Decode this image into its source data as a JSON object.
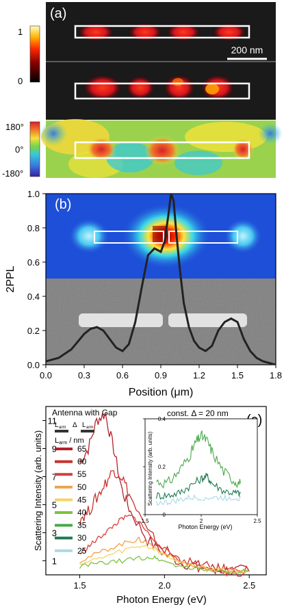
{
  "panel_a": {
    "label": "(a)",
    "scalebar": "200 nm",
    "amp_colorbar_ticks": [
      "1",
      "0"
    ],
    "phase_colorbar_ticks": [
      "180°",
      "0°",
      "-180°"
    ]
  },
  "panel_b": {
    "label": "(b)"
  },
  "panel_c": {
    "label": "(c)",
    "legend_title": "Antenna with Gap",
    "legend_schematic": [
      "L",
      "arm",
      "Δ",
      "L",
      "arm"
    ],
    "legend_header": [
      "L",
      "arm",
      " / nm"
    ]
  },
  "colors": {
    "trace": "#222222",
    "legend": {
      "65": "#b2212b",
      "60": "#c9302c",
      "55": "#d6403a",
      "50": "#f0a24b",
      "45": "#f4d36a",
      "40": "#7cc242",
      "35": "#4aa84a",
      "30": "#1f7a52",
      "25": "#a9d9e6"
    }
  },
  "chart_data": [
    {
      "type": "line",
      "panel": "b",
      "xlabel": "Position (μm)",
      "ylabel": "2PPL",
      "xlim": [
        0.0,
        1.8
      ],
      "ylim": [
        0.0,
        1.0
      ],
      "xticks": [
        "0.0",
        "0.3",
        "0.6",
        "0.9",
        "1.2",
        "1.5",
        "1.8"
      ],
      "yticks": [
        "0.0",
        "0.2",
        "0.4",
        "0.6",
        "0.8",
        "1.0"
      ],
      "series": [
        {
          "x": [
            0.0,
            0.1,
            0.2,
            0.3,
            0.35,
            0.4,
            0.45,
            0.5,
            0.55,
            0.6,
            0.65,
            0.7,
            0.75,
            0.8,
            0.85,
            0.9,
            0.93,
            0.96,
            0.98,
            1.0,
            1.02,
            1.05,
            1.08,
            1.12,
            1.16,
            1.2,
            1.25,
            1.3,
            1.35,
            1.4,
            1.45,
            1.5,
            1.55,
            1.6,
            1.65,
            1.7,
            1.75,
            1.8
          ],
          "y": [
            0.02,
            0.04,
            0.09,
            0.18,
            0.21,
            0.22,
            0.2,
            0.15,
            0.1,
            0.08,
            0.12,
            0.25,
            0.45,
            0.64,
            0.68,
            0.66,
            0.72,
            0.88,
            1.0,
            0.96,
            0.78,
            0.55,
            0.36,
            0.22,
            0.14,
            0.1,
            0.08,
            0.11,
            0.2,
            0.25,
            0.27,
            0.25,
            0.15,
            0.08,
            0.04,
            0.02,
            0.01,
            0.0
          ]
        }
      ]
    },
    {
      "type": "line",
      "panel": "c",
      "xlabel": "Photon Energy (eV)",
      "ylabel": "Scattering Intensity (arb. units)",
      "xlim": [
        1.3,
        2.6
      ],
      "ylim": [
        0,
        12
      ],
      "xticks": [
        "1.5",
        "2.0",
        "2.5"
      ],
      "yticks": [
        "1",
        "3",
        "5",
        "7",
        "9",
        "11"
      ],
      "series": [
        {
          "name": "65",
          "x": [
            1.5,
            1.55,
            1.6,
            1.65,
            1.7,
            1.75,
            1.8,
            1.9,
            2.0,
            2.1,
            2.2,
            2.3,
            2.4,
            2.5
          ],
          "y": [
            8.0,
            9.0,
            11.0,
            11.5,
            9.0,
            6.0,
            4.5,
            2.5,
            1.5,
            0.9,
            0.6,
            0.4,
            0.3,
            0.25
          ]
        },
        {
          "name": "60",
          "x": [
            1.5,
            1.55,
            1.6,
            1.65,
            1.7,
            1.75,
            1.8,
            1.9,
            2.0,
            2.1,
            2.2,
            2.3,
            2.4,
            2.5
          ],
          "y": [
            4.0,
            4.5,
            5.5,
            6.5,
            7.5,
            7.0,
            5.5,
            3.0,
            1.8,
            1.0,
            0.6,
            0.4,
            0.3,
            0.25
          ]
        },
        {
          "name": "55",
          "x": [
            1.5,
            1.55,
            1.6,
            1.65,
            1.7,
            1.75,
            1.8,
            1.85,
            1.9,
            2.0,
            2.1,
            2.2,
            2.3,
            2.4,
            2.5
          ],
          "y": [
            1.5,
            2.0,
            2.5,
            3.0,
            3.5,
            4.0,
            4.2,
            3.8,
            3.0,
            1.8,
            1.0,
            0.6,
            0.4,
            0.3,
            0.25
          ]
        },
        {
          "name": "50",
          "x": [
            1.5,
            1.6,
            1.7,
            1.8,
            1.85,
            1.9,
            2.0,
            2.1,
            2.2,
            2.3,
            2.4,
            2.5
          ],
          "y": [
            1.0,
            1.5,
            2.0,
            2.4,
            2.5,
            2.3,
            1.5,
            0.9,
            0.5,
            0.35,
            0.3,
            0.25
          ]
        },
        {
          "name": "45",
          "x": [
            1.5,
            1.6,
            1.7,
            1.8,
            1.88,
            1.95,
            2.05,
            2.15,
            2.3,
            2.4,
            2.5
          ],
          "y": [
            0.8,
            1.1,
            1.5,
            1.9,
            2.1,
            1.8,
            1.1,
            0.7,
            0.4,
            0.3,
            0.25
          ]
        },
        {
          "name": "40",
          "x": [
            1.5,
            1.6,
            1.7,
            1.8,
            1.9,
            1.95,
            2.0,
            2.1,
            2.2,
            2.3,
            2.5
          ],
          "y": [
            0.6,
            0.8,
            0.9,
            1.1,
            1.25,
            1.2,
            0.95,
            0.6,
            0.4,
            0.3,
            0.25
          ]
        }
      ],
      "inset": {
        "title": "const. Δ = 20 nm",
        "xlabel": "Photon Energy (eV)",
        "ylabel": "Scattering Intensity (arb. units)",
        "xlim": [
          1.5,
          2.5
        ],
        "ylim": [
          0,
          0.4
        ],
        "xticks": [
          "1.5",
          "2",
          "2.5"
        ],
        "yticks": [
          "0",
          "0.2",
          "0.4"
        ],
        "series": [
          {
            "name": "35",
            "x": [
              1.6,
              1.7,
              1.8,
              1.9,
              1.95,
              2.0,
              2.05,
              2.1,
              2.2,
              2.3,
              2.35
            ],
            "y": [
              0.14,
              0.13,
              0.18,
              0.25,
              0.3,
              0.33,
              0.31,
              0.26,
              0.18,
              0.14,
              0.13
            ]
          },
          {
            "name": "30",
            "x": [
              1.6,
              1.7,
              1.8,
              1.9,
              2.0,
              2.05,
              2.1,
              2.2,
              2.3,
              2.35
            ],
            "y": [
              0.08,
              0.08,
              0.09,
              0.12,
              0.15,
              0.16,
              0.13,
              0.1,
              0.09,
              0.09
            ]
          },
          {
            "name": "25",
            "x": [
              1.6,
              1.7,
              1.8,
              1.9,
              2.0,
              2.1,
              2.2,
              2.3,
              2.35
            ],
            "y": [
              0.05,
              0.05,
              0.06,
              0.07,
              0.07,
              0.07,
              0.07,
              0.07,
              0.07
            ]
          }
        ]
      }
    }
  ]
}
